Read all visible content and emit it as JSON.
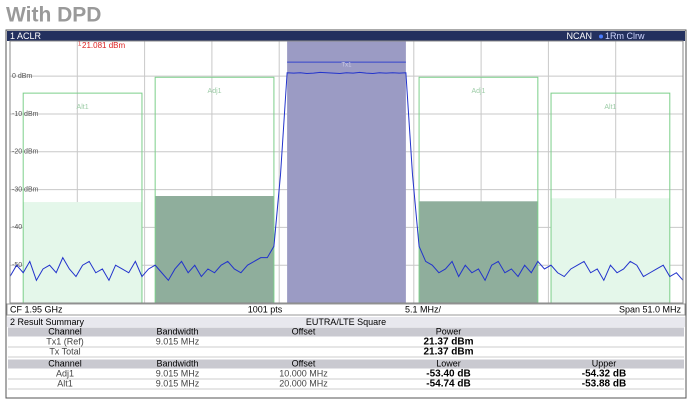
{
  "title": "With DPD",
  "chart_data": {
    "type": "line",
    "window_title": "1 ACLR",
    "mode": "NCAN",
    "marker_label": "1",
    "marker_text": "21.081 dBm",
    "cf": "CF 1.95 GHz",
    "points": "1001 pts",
    "division": "5.1 MHz/",
    "span": "Span 51.0 MHz",
    "xlim": [
      -25.5,
      25.5
    ],
    "ylim": [
      -60,
      9.3
    ],
    "yticks": [
      {
        "value": 0,
        "label": "0 dBm"
      },
      {
        "value": -10,
        "label": "-10 dBm"
      },
      {
        "value": -20,
        "label": "-20 dBm"
      },
      {
        "value": -30,
        "label": "-30 dBm"
      },
      {
        "value": -40,
        "label": "-40 dBm"
      },
      {
        "value": -50,
        "label": "-50 dBm"
      }
    ],
    "grid": true,
    "channels": [
      {
        "label": "Alt1",
        "range": [
          -24.5,
          -15.5
        ],
        "level": -33.3,
        "limit": -4.5,
        "color": "#e4f7ea"
      },
      {
        "label": "Adj1",
        "range": [
          -14.5,
          -5.5
        ],
        "level": -31.7,
        "limit": -0.3,
        "color": "#8fae9c"
      },
      {
        "label": "Tx1",
        "range": [
          -4.5,
          4.5
        ],
        "level": 3.7,
        "color": "#9b9bc4"
      },
      {
        "label": "Adj1",
        "range": [
          5.5,
          14.5
        ],
        "level": -33.1,
        "limit": -0.3,
        "color": "#8fae9c"
      },
      {
        "label": "Alt1",
        "range": [
          15.5,
          24.5
        ],
        "level": -32.3,
        "limit": -4.5,
        "color": "#e4f7ea"
      }
    ],
    "x": [
      -25.5,
      -25,
      -24.5,
      -24,
      -23.5,
      -23,
      -22.5,
      -22,
      -21.5,
      -21,
      -20.5,
      -20,
      -19.5,
      -19,
      -18.5,
      -18,
      -17.5,
      -17,
      -16.5,
      -16,
      -15.5,
      -15,
      -14.5,
      -14,
      -13.5,
      -13,
      -12.5,
      -12,
      -11.5,
      -11,
      -10.5,
      -10,
      -9.5,
      -9,
      -8.5,
      -8,
      -7.5,
      -7,
      -6.5,
      -6,
      -5.5,
      -5,
      -4.5,
      -4,
      -3.5,
      -3,
      -2.5,
      -2,
      -1.5,
      -1,
      -0.5,
      0,
      0.5,
      1,
      1.5,
      2,
      2.5,
      3,
      3.5,
      4,
      4.5,
      5,
      5.5,
      6,
      6.5,
      7,
      7.5,
      8,
      8.5,
      9,
      9.5,
      10,
      10.5,
      11,
      11.5,
      12,
      12.5,
      13,
      13.5,
      14,
      14.5,
      15,
      15.5,
      16,
      16.5,
      17,
      17.5,
      18,
      18.5,
      19,
      19.5,
      20,
      20.5,
      21,
      21.5,
      22,
      22.5,
      23,
      23.5,
      24,
      24.5,
      25,
      25.5
    ],
    "series": [
      {
        "name": "1Rm Clrw",
        "color": "#2233cc",
        "values": [
          -53,
          -50,
          -52,
          -49,
          -54,
          -51,
          -50,
          -52,
          -48,
          -51,
          -53,
          -50,
          -49,
          -52,
          -51,
          -54,
          -50,
          -51,
          -52,
          -49,
          -53,
          -51,
          -50,
          -52,
          -54,
          -51,
          -49,
          -52,
          -50,
          -53,
          -51,
          -52,
          -50,
          -49,
          -51,
          -52,
          -50,
          -49,
          -48,
          -48,
          -45,
          -26,
          0.9,
          0.8,
          0.9,
          0.7,
          0.8,
          1.0,
          0.9,
          0.8,
          0.7,
          0.9,
          0.8,
          1.0,
          0.8,
          0.7,
          0.9,
          0.8,
          0.9,
          0.8,
          0.9,
          -26,
          -45,
          -49,
          -50,
          -52,
          -51,
          -49,
          -53,
          -50,
          -52,
          -51,
          -54,
          -50,
          -49,
          -52,
          -51,
          -53,
          -50,
          -52,
          -49,
          -51,
          -50,
          -52,
          -53,
          -51,
          -50,
          -49,
          -52,
          -51,
          -54,
          -50,
          -52,
          -51,
          -49,
          -50,
          -53,
          -52,
          -51,
          -50,
          -53,
          -52,
          -54
        ]
      }
    ]
  },
  "table": {
    "title": "2 Result Summary",
    "mode": "EUTRA/LTE Square",
    "power_header": [
      "Channel",
      "Bandwidth",
      "Offset",
      "Power"
    ],
    "power_rows": [
      {
        "channel": "Tx1 (Ref)",
        "bandwidth": "9.015 MHz",
        "power": "21.37 dBm"
      },
      {
        "channel": "Tx Total",
        "power": "21.37 dBm"
      }
    ],
    "aclr_header": [
      "Channel",
      "Bandwidth",
      "Offset",
      "Lower",
      "Upper"
    ],
    "aclr_rows": [
      {
        "channel": "Adj1",
        "bandwidth": "9.015 MHz",
        "offset": "10.000 MHz",
        "lower": "-53.40 dB",
        "upper": "-54.32 dB"
      },
      {
        "channel": "Alt1",
        "bandwidth": "9.015 MHz",
        "offset": "20.000 MHz",
        "lower": "-54.74 dB",
        "upper": "-53.88 dB"
      }
    ]
  }
}
